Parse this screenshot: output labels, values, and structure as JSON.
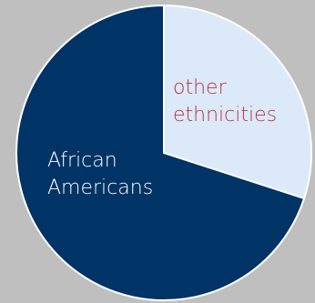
{
  "chart_data": {
    "type": "pie",
    "slices": [
      {
        "label_lines": [
          "other",
          "ethnicities"
        ],
        "value": 30,
        "color": "#dbe9f9",
        "label_color": "#b73845"
      },
      {
        "label_lines": [
          "African",
          "Americans"
        ],
        "value": 70,
        "color": "#003366",
        "label_color": "#ffffff"
      }
    ],
    "start_angle_deg": 0,
    "direction": "clockwise",
    "legend": "none"
  },
  "colors": {
    "background": "#bfbfbf",
    "slice_border": "#ffffff"
  }
}
